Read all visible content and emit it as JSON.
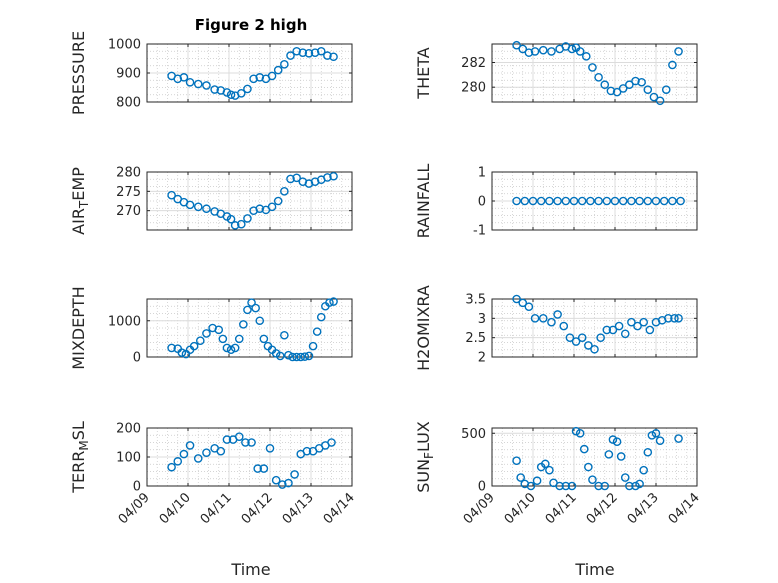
{
  "chart_data": {
    "type": "scatter",
    "title": "Figure 2 high",
    "xlabel": "Time",
    "marker_color": "#0072BD",
    "x_ticks": [
      "04/09",
      "04/10",
      "04/11",
      "04/12",
      "04/13",
      "04/14"
    ],
    "xlim": [
      0,
      5
    ],
    "panels": [
      {
        "name": "pressure",
        "ylabel": "PRESSURE",
        "ylim": [
          800,
          1000
        ],
        "yticks": [
          800,
          900,
          1000
        ],
        "yticklabels": [
          "800",
          "900",
          "1000"
        ],
        "points": [
          [
            0.6,
            890
          ],
          [
            0.75,
            880
          ],
          [
            0.9,
            885
          ],
          [
            1.05,
            868
          ],
          [
            1.25,
            862
          ],
          [
            1.45,
            857
          ],
          [
            1.65,
            843
          ],
          [
            1.8,
            840
          ],
          [
            1.95,
            833
          ],
          [
            2.05,
            825
          ],
          [
            2.15,
            822
          ],
          [
            2.3,
            830
          ],
          [
            2.45,
            845
          ],
          [
            2.6,
            880
          ],
          [
            2.75,
            885
          ],
          [
            2.9,
            880
          ],
          [
            3.05,
            890
          ],
          [
            3.2,
            910
          ],
          [
            3.35,
            930
          ],
          [
            3.5,
            960
          ],
          [
            3.65,
            975
          ],
          [
            3.8,
            970
          ],
          [
            3.95,
            968
          ],
          [
            4.1,
            970
          ],
          [
            4.25,
            975
          ],
          [
            4.4,
            960
          ],
          [
            4.55,
            956
          ]
        ]
      },
      {
        "name": "theta",
        "ylabel": "THETA",
        "ylim": [
          278.8,
          283.5
        ],
        "yticks": [
          280,
          282
        ],
        "yticklabels": [
          "280",
          "282"
        ],
        "points": [
          [
            0.6,
            283.4
          ],
          [
            0.75,
            283.1
          ],
          [
            0.9,
            282.8
          ],
          [
            1.05,
            282.9
          ],
          [
            1.25,
            283.0
          ],
          [
            1.45,
            282.9
          ],
          [
            1.65,
            283.1
          ],
          [
            1.8,
            283.3
          ],
          [
            1.95,
            283.1
          ],
          [
            2.05,
            283.2
          ],
          [
            2.15,
            282.9
          ],
          [
            2.3,
            282.5
          ],
          [
            2.45,
            281.6
          ],
          [
            2.6,
            280.8
          ],
          [
            2.75,
            280.2
          ],
          [
            2.9,
            279.7
          ],
          [
            3.05,
            279.6
          ],
          [
            3.2,
            279.9
          ],
          [
            3.35,
            280.2
          ],
          [
            3.5,
            280.5
          ],
          [
            3.65,
            280.4
          ],
          [
            3.8,
            279.8
          ],
          [
            3.95,
            279.2
          ],
          [
            4.1,
            278.9
          ],
          [
            4.25,
            279.8
          ],
          [
            4.4,
            281.8
          ],
          [
            4.55,
            282.9
          ]
        ]
      },
      {
        "name": "air-temp",
        "ylabel": "AIR",
        "ylabel_sub": "T",
        "ylabel_tail": "EMP",
        "ylim": [
          265,
          280
        ],
        "yticks": [
          270,
          275,
          280
        ],
        "yticklabels": [
          "270",
          "275",
          "280"
        ],
        "points": [
          [
            0.6,
            274.0
          ],
          [
            0.75,
            273.0
          ],
          [
            0.9,
            272.2
          ],
          [
            1.05,
            271.5
          ],
          [
            1.25,
            271.0
          ],
          [
            1.45,
            270.5
          ],
          [
            1.65,
            269.8
          ],
          [
            1.8,
            269.2
          ],
          [
            1.95,
            268.5
          ],
          [
            2.05,
            267.8
          ],
          [
            2.15,
            266.2
          ],
          [
            2.3,
            266.5
          ],
          [
            2.45,
            268.0
          ],
          [
            2.6,
            270.0
          ],
          [
            2.75,
            270.5
          ],
          [
            2.9,
            270.2
          ],
          [
            3.05,
            271.0
          ],
          [
            3.2,
            272.5
          ],
          [
            3.35,
            275.0
          ],
          [
            3.5,
            278.2
          ],
          [
            3.65,
            278.5
          ],
          [
            3.8,
            277.5
          ],
          [
            3.95,
            277.0
          ],
          [
            4.1,
            277.5
          ],
          [
            4.25,
            278.0
          ],
          [
            4.4,
            278.6
          ],
          [
            4.55,
            278.9
          ]
        ]
      },
      {
        "name": "rainfall",
        "ylabel": "RAINFALL",
        "ylim": [
          -1,
          1
        ],
        "yticks": [
          -1,
          0,
          1
        ],
        "yticklabels": [
          "-1",
          "0",
          "1"
        ],
        "points": [
          [
            0.6,
            0
          ],
          [
            0.8,
            0
          ],
          [
            1.0,
            0
          ],
          [
            1.2,
            0
          ],
          [
            1.4,
            0
          ],
          [
            1.6,
            0
          ],
          [
            1.8,
            0
          ],
          [
            2.0,
            0
          ],
          [
            2.2,
            0
          ],
          [
            2.4,
            0
          ],
          [
            2.6,
            0
          ],
          [
            2.8,
            0
          ],
          [
            3.0,
            0
          ],
          [
            3.2,
            0
          ],
          [
            3.4,
            0
          ],
          [
            3.6,
            0
          ],
          [
            3.8,
            0
          ],
          [
            4.0,
            0
          ],
          [
            4.2,
            0
          ],
          [
            4.4,
            0
          ],
          [
            4.6,
            0
          ]
        ]
      },
      {
        "name": "mixdepth",
        "ylabel": "MIXDEPTH",
        "ylim": [
          0,
          1600
        ],
        "yticks": [
          0,
          1000
        ],
        "yticklabels": [
          "0",
          "1000"
        ],
        "points": [
          [
            0.6,
            250
          ],
          [
            0.75,
            230
          ],
          [
            0.85,
            120
          ],
          [
            0.95,
            80
          ],
          [
            1.05,
            200
          ],
          [
            1.15,
            300
          ],
          [
            1.3,
            450
          ],
          [
            1.45,
            650
          ],
          [
            1.6,
            800
          ],
          [
            1.75,
            750
          ],
          [
            1.85,
            500
          ],
          [
            1.95,
            250
          ],
          [
            2.05,
            200
          ],
          [
            2.15,
            250
          ],
          [
            2.25,
            500
          ],
          [
            2.35,
            900
          ],
          [
            2.45,
            1300
          ],
          [
            2.55,
            1500
          ],
          [
            2.65,
            1350
          ],
          [
            2.75,
            1000
          ],
          [
            2.85,
            500
          ],
          [
            2.95,
            300
          ],
          [
            3.05,
            200
          ],
          [
            3.15,
            100
          ],
          [
            3.25,
            30
          ],
          [
            3.35,
            600
          ],
          [
            3.45,
            50
          ],
          [
            3.55,
            0
          ],
          [
            3.65,
            0
          ],
          [
            3.75,
            0
          ],
          [
            3.85,
            10
          ],
          [
            3.95,
            30
          ],
          [
            4.05,
            300
          ],
          [
            4.15,
            700
          ],
          [
            4.25,
            1100
          ],
          [
            4.35,
            1400
          ],
          [
            4.45,
            1500
          ],
          [
            4.55,
            1530
          ]
        ]
      },
      {
        "name": "h2omixra",
        "ylabel": "H2OMIXRA",
        "ylim": [
          2,
          3.5
        ],
        "yticks": [
          2,
          2.5,
          3,
          3.5
        ],
        "yticklabels": [
          "2",
          "2.5",
          "3",
          "3.5"
        ],
        "points": [
          [
            0.6,
            3.5
          ],
          [
            0.75,
            3.4
          ],
          [
            0.9,
            3.3
          ],
          [
            1.05,
            3.0
          ],
          [
            1.25,
            3.0
          ],
          [
            1.45,
            2.9
          ],
          [
            1.6,
            3.1
          ],
          [
            1.75,
            2.8
          ],
          [
            1.9,
            2.5
          ],
          [
            2.05,
            2.4
          ],
          [
            2.2,
            2.5
          ],
          [
            2.35,
            2.3
          ],
          [
            2.5,
            2.2
          ],
          [
            2.65,
            2.5
          ],
          [
            2.8,
            2.7
          ],
          [
            2.95,
            2.7
          ],
          [
            3.1,
            2.8
          ],
          [
            3.25,
            2.6
          ],
          [
            3.4,
            2.9
          ],
          [
            3.55,
            2.8
          ],
          [
            3.7,
            2.9
          ],
          [
            3.85,
            2.7
          ],
          [
            4.0,
            2.9
          ],
          [
            4.15,
            2.95
          ],
          [
            4.3,
            3.0
          ],
          [
            4.45,
            3.0
          ],
          [
            4.55,
            3.0
          ]
        ]
      },
      {
        "name": "terr-msl",
        "ylabel": "TERR",
        "ylabel_sub": "M",
        "ylabel_tail": "SL",
        "ylim": [
          0,
          200
        ],
        "yticks": [
          0,
          100,
          200
        ],
        "yticklabels": [
          "0",
          "100",
          "200"
        ],
        "points": [
          [
            0.6,
            65
          ],
          [
            0.75,
            85
          ],
          [
            0.9,
            110
          ],
          [
            1.05,
            140
          ],
          [
            1.25,
            95
          ],
          [
            1.45,
            115
          ],
          [
            1.65,
            130
          ],
          [
            1.8,
            120
          ],
          [
            1.95,
            160
          ],
          [
            2.1,
            160
          ],
          [
            2.25,
            170
          ],
          [
            2.4,
            150
          ],
          [
            2.55,
            150
          ],
          [
            2.7,
            60
          ],
          [
            2.85,
            60
          ],
          [
            3.0,
            130
          ],
          [
            3.15,
            20
          ],
          [
            3.3,
            5
          ],
          [
            3.45,
            10
          ],
          [
            3.6,
            40
          ],
          [
            3.75,
            110
          ],
          [
            3.9,
            120
          ],
          [
            4.05,
            120
          ],
          [
            4.2,
            130
          ],
          [
            4.35,
            140
          ],
          [
            4.5,
            150
          ]
        ]
      },
      {
        "name": "sun-flux",
        "ylabel": "SUN",
        "ylabel_sub": "F",
        "ylabel_tail": "LUX",
        "ylim": [
          0,
          550
        ],
        "yticks": [
          0,
          500
        ],
        "yticklabels": [
          "0",
          "500"
        ],
        "points": [
          [
            0.6,
            240
          ],
          [
            0.7,
            80
          ],
          [
            0.8,
            20
          ],
          [
            0.95,
            0
          ],
          [
            1.1,
            50
          ],
          [
            1.2,
            180
          ],
          [
            1.3,
            210
          ],
          [
            1.4,
            150
          ],
          [
            1.5,
            30
          ],
          [
            1.65,
            0
          ],
          [
            1.8,
            0
          ],
          [
            1.95,
            0
          ],
          [
            2.05,
            520
          ],
          [
            2.15,
            500
          ],
          [
            2.25,
            350
          ],
          [
            2.35,
            180
          ],
          [
            2.45,
            60
          ],
          [
            2.6,
            0
          ],
          [
            2.75,
            0
          ],
          [
            2.85,
            300
          ],
          [
            2.95,
            440
          ],
          [
            3.05,
            420
          ],
          [
            3.15,
            280
          ],
          [
            3.25,
            80
          ],
          [
            3.35,
            0
          ],
          [
            3.5,
            0
          ],
          [
            3.6,
            20
          ],
          [
            3.7,
            150
          ],
          [
            3.8,
            320
          ],
          [
            3.9,
            480
          ],
          [
            4.0,
            500
          ],
          [
            4.1,
            430
          ],
          [
            4.55,
            450
          ]
        ]
      }
    ]
  }
}
